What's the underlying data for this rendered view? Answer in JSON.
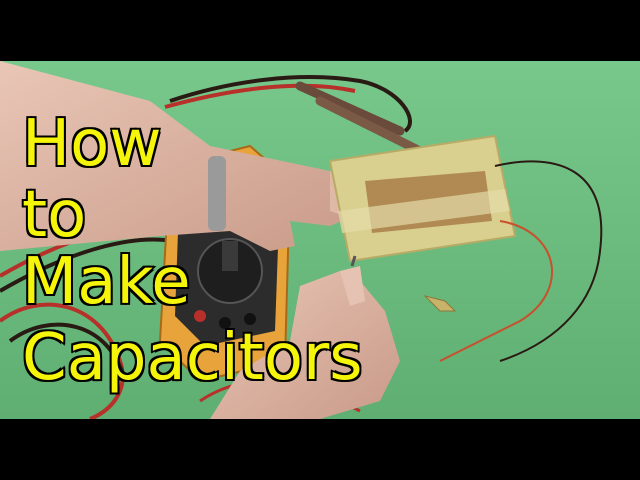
{
  "title": {
    "line1": "How",
    "line2": "to",
    "line3": "Make",
    "line4": "Capacitors"
  },
  "colors": {
    "background": "#6fc183",
    "letterbox": "#000000",
    "title_fill": "#f5f50a",
    "title_outline": "#000000",
    "meter_body": "#e8a43a",
    "meter_face": "#2c2c2c",
    "foil": "#b08a52",
    "tape": "#d9cf8e",
    "lead_red": "#b8302a",
    "lead_black": "#2a1a14"
  }
}
